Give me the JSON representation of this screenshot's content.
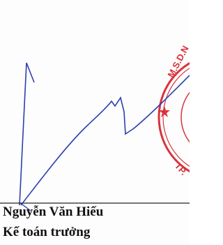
{
  "stamp": {
    "top_text": "M.S.D.N",
    "bottom_text": "TP."
  },
  "signer": {
    "name": "Nguyễn Văn Hiếu",
    "position": "Kế toán trưởng"
  }
}
